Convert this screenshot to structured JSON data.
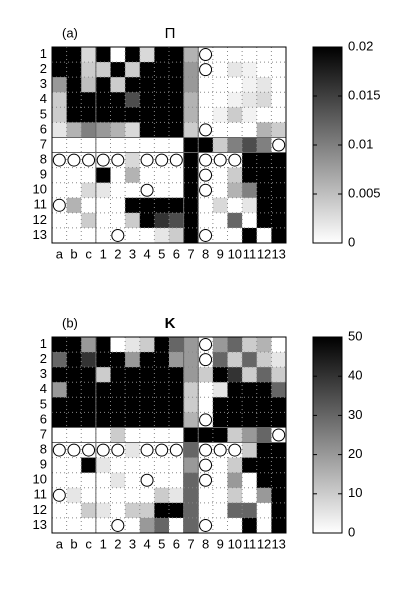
{
  "chart_data": [
    {
      "type": "heatmap",
      "label": "(a)",
      "title": "Π",
      "x_categories": [
        "a",
        "b",
        "c",
        "1",
        "2",
        "3",
        "4",
        "5",
        "6",
        "7",
        "8",
        "9",
        "10",
        "11",
        "12",
        "13"
      ],
      "y_categories": [
        "1",
        "2",
        "3",
        "4",
        "5",
        "6",
        "7",
        "8",
        "9",
        "10",
        "11",
        "12",
        "13"
      ],
      "values": [
        [
          0.02,
          0.02,
          0.003,
          0.02,
          0,
          0.02,
          0.003,
          0.02,
          0.02,
          0.006,
          0,
          0,
          0,
          0,
          0,
          0
        ],
        [
          0.02,
          0.02,
          0.004,
          0.004,
          0.02,
          0.004,
          0.02,
          0.02,
          0.02,
          0.008,
          0,
          0,
          0.002,
          0.001,
          0,
          0
        ],
        [
          0.008,
          0.02,
          0.005,
          0.02,
          0.004,
          0.02,
          0.02,
          0.02,
          0.02,
          0.008,
          0,
          0,
          0,
          0.001,
          0.002,
          0
        ],
        [
          0.004,
          0.02,
          0.02,
          0.02,
          0.02,
          0.014,
          0.02,
          0.02,
          0.02,
          0.006,
          0,
          0,
          0.001,
          0.002,
          0.003,
          0
        ],
        [
          0.004,
          0.02,
          0.02,
          0.02,
          0.02,
          0.02,
          0.02,
          0.02,
          0.02,
          0.006,
          0,
          0.001,
          0.004,
          0.001,
          0,
          0
        ],
        [
          0.002,
          0.006,
          0.01,
          0.008,
          0.006,
          0.003,
          0.02,
          0.02,
          0.02,
          0.004,
          0,
          0,
          0,
          0,
          0.006,
          0.004
        ],
        [
          0,
          0,
          0,
          0,
          0,
          0,
          0,
          0,
          0,
          0.02,
          0.02,
          0.004,
          0.01,
          0.014,
          0.01,
          0
        ],
        [
          0,
          0,
          0,
          0,
          0,
          0.003,
          0,
          0,
          0,
          0.02,
          0,
          0,
          0,
          0.02,
          0.02,
          0.02
        ],
        [
          0,
          0,
          0,
          0.02,
          0,
          0.006,
          0,
          0,
          0,
          0.02,
          0,
          0,
          0.004,
          0.02,
          0.02,
          0.02
        ],
        [
          0,
          0,
          0.003,
          0.002,
          0,
          0,
          0,
          0,
          0,
          0.02,
          0,
          0,
          0.006,
          0.01,
          0.02,
          0.02
        ],
        [
          0,
          0.006,
          0,
          0,
          0,
          0.02,
          0.02,
          0.02,
          0.02,
          0.02,
          0,
          0.003,
          0,
          0.002,
          0.02,
          0.02
        ],
        [
          0,
          0,
          0.004,
          0,
          0,
          0.004,
          0.02,
          0.016,
          0.014,
          0.02,
          0,
          0,
          0.012,
          0,
          0.02,
          0.02
        ],
        [
          0,
          0,
          0,
          0,
          0,
          0,
          0,
          0.002,
          0.004,
          0.02,
          0,
          0,
          0,
          0.02,
          0,
          0.02
        ]
      ],
      "markers": [
        [
          0,
          10
        ],
        [
          1,
          10
        ],
        [
          5,
          10
        ],
        [
          6,
          15
        ],
        [
          7,
          0
        ],
        [
          7,
          1
        ],
        [
          7,
          2
        ],
        [
          7,
          3
        ],
        [
          7,
          4
        ],
        [
          7,
          6
        ],
        [
          7,
          7
        ],
        [
          7,
          8
        ],
        [
          7,
          10
        ],
        [
          7,
          11
        ],
        [
          7,
          12
        ],
        [
          8,
          10
        ],
        [
          9,
          6
        ],
        [
          9,
          10
        ],
        [
          10,
          0
        ],
        [
          12,
          4
        ],
        [
          12,
          10
        ]
      ],
      "zlim": [
        0,
        0.02
      ],
      "zticks": [
        0,
        0.005,
        0.01,
        0.015,
        0.02
      ],
      "colors": [
        "#ffffff",
        "#000000"
      ]
    },
    {
      "type": "heatmap",
      "label": "(b)",
      "title": "K",
      "x_categories": [
        "a",
        "b",
        "c",
        "1",
        "2",
        "3",
        "4",
        "5",
        "6",
        "7",
        "8",
        "9",
        "10",
        "11",
        "12",
        "13"
      ],
      "y_categories": [
        "1",
        "2",
        "3",
        "4",
        "5",
        "6",
        "7",
        "8",
        "9",
        "10",
        "11",
        "12",
        "13"
      ],
      "values": [
        [
          50,
          50,
          20,
          50,
          0,
          5,
          10,
          50,
          30,
          20,
          0,
          20,
          30,
          10,
          15,
          0
        ],
        [
          30,
          50,
          40,
          50,
          50,
          20,
          50,
          50,
          20,
          20,
          0,
          30,
          10,
          30,
          10,
          5
        ],
        [
          50,
          50,
          50,
          10,
          50,
          50,
          50,
          50,
          50,
          20,
          10,
          50,
          40,
          10,
          30,
          10
        ],
        [
          20,
          50,
          50,
          50,
          50,
          50,
          50,
          50,
          50,
          10,
          0,
          5,
          50,
          50,
          50,
          30
        ],
        [
          50,
          50,
          50,
          50,
          50,
          50,
          50,
          50,
          50,
          10,
          0,
          50,
          50,
          50,
          50,
          50
        ],
        [
          50,
          50,
          50,
          50,
          50,
          50,
          50,
          50,
          50,
          15,
          0,
          50,
          50,
          50,
          50,
          50
        ],
        [
          0,
          0,
          0,
          0,
          10,
          0,
          0,
          0,
          0,
          50,
          50,
          50,
          10,
          20,
          30,
          0
        ],
        [
          0,
          0,
          0,
          0,
          0,
          5,
          0,
          0,
          0,
          30,
          0,
          0,
          0,
          10,
          50,
          50
        ],
        [
          0,
          0,
          50,
          5,
          0,
          0,
          0,
          0,
          0,
          20,
          0,
          0,
          10,
          50,
          50,
          50
        ],
        [
          0,
          0,
          0,
          0,
          5,
          0,
          0,
          0,
          0,
          30,
          0,
          0,
          20,
          0,
          50,
          50
        ],
        [
          0,
          5,
          0,
          0,
          0,
          0,
          0,
          10,
          5,
          30,
          0,
          0,
          10,
          0,
          20,
          50
        ],
        [
          0,
          0,
          10,
          5,
          0,
          10,
          10,
          50,
          50,
          30,
          0,
          0,
          30,
          30,
          0,
          50
        ],
        [
          0,
          0,
          0,
          0,
          0,
          0,
          20,
          30,
          0,
          30,
          0,
          0,
          0,
          50,
          0,
          50
        ]
      ],
      "markers": [
        [
          0,
          10
        ],
        [
          1,
          10
        ],
        [
          5,
          10
        ],
        [
          6,
          15
        ],
        [
          7,
          0
        ],
        [
          7,
          1
        ],
        [
          7,
          2
        ],
        [
          7,
          3
        ],
        [
          7,
          4
        ],
        [
          7,
          6
        ],
        [
          7,
          7
        ],
        [
          7,
          8
        ],
        [
          7,
          10
        ],
        [
          7,
          11
        ],
        [
          7,
          12
        ],
        [
          8,
          10
        ],
        [
          9,
          6
        ],
        [
          9,
          10
        ],
        [
          10,
          0
        ],
        [
          12,
          4
        ],
        [
          12,
          10
        ]
      ],
      "zlim": [
        0,
        50
      ],
      "zticks": [
        0,
        10,
        20,
        30,
        40,
        50
      ],
      "colors": [
        "#ffffff",
        "#000000"
      ]
    }
  ]
}
